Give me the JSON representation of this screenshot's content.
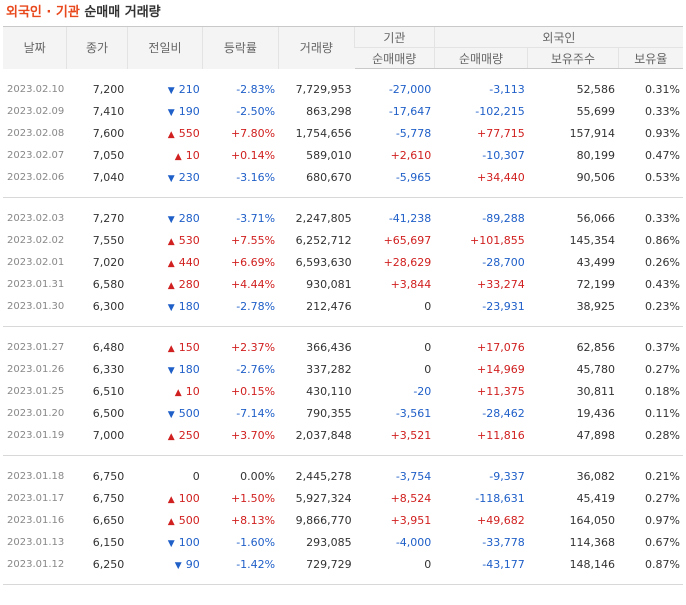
{
  "title": {
    "part1": "외국인 · 기관",
    "part2": "순매매 거래량"
  },
  "headers": {
    "date": "날짜",
    "close": "종가",
    "change": "전일비",
    "rate": "등락률",
    "volume": "거래량",
    "inst_group": "기관",
    "foreign_group": "외국인",
    "inst_net": "순매매량",
    "foreign_net": "순매매량",
    "foreign_hold": "보유주수",
    "foreign_ratio": "보유율"
  },
  "groups": [
    [
      {
        "date": "2023.02.10",
        "close": "7,200",
        "dir": "down",
        "change": "210",
        "rate": "-2.83%",
        "volume": "7,729,953",
        "inst": "-27,000",
        "foreign": "-3,113",
        "hold": "52,586",
        "ratio": "0.31%"
      },
      {
        "date": "2023.02.09",
        "close": "7,410",
        "dir": "down",
        "change": "190",
        "rate": "-2.50%",
        "volume": "863,298",
        "inst": "-17,647",
        "foreign": "-102,215",
        "hold": "55,699",
        "ratio": "0.33%"
      },
      {
        "date": "2023.02.08",
        "close": "7,600",
        "dir": "up",
        "change": "550",
        "rate": "+7.80%",
        "volume": "1,754,656",
        "inst": "-5,778",
        "foreign": "+77,715",
        "hold": "157,914",
        "ratio": "0.93%"
      },
      {
        "date": "2023.02.07",
        "close": "7,050",
        "dir": "up",
        "change": "10",
        "rate": "+0.14%",
        "volume": "589,010",
        "inst": "+2,610",
        "foreign": "-10,307",
        "hold": "80,199",
        "ratio": "0.47%"
      },
      {
        "date": "2023.02.06",
        "close": "7,040",
        "dir": "down",
        "change": "230",
        "rate": "-3.16%",
        "volume": "680,670",
        "inst": "-5,965",
        "foreign": "+34,440",
        "hold": "90,506",
        "ratio": "0.53%"
      }
    ],
    [
      {
        "date": "2023.02.03",
        "close": "7,270",
        "dir": "down",
        "change": "280",
        "rate": "-3.71%",
        "volume": "2,247,805",
        "inst": "-41,238",
        "foreign": "-89,288",
        "hold": "56,066",
        "ratio": "0.33%"
      },
      {
        "date": "2023.02.02",
        "close": "7,550",
        "dir": "up",
        "change": "530",
        "rate": "+7.55%",
        "volume": "6,252,712",
        "inst": "+65,697",
        "foreign": "+101,855",
        "hold": "145,354",
        "ratio": "0.86%"
      },
      {
        "date": "2023.02.01",
        "close": "7,020",
        "dir": "up",
        "change": "440",
        "rate": "+6.69%",
        "volume": "6,593,630",
        "inst": "+28,629",
        "foreign": "-28,700",
        "hold": "43,499",
        "ratio": "0.26%"
      },
      {
        "date": "2023.01.31",
        "close": "6,580",
        "dir": "up",
        "change": "280",
        "rate": "+4.44%",
        "volume": "930,081",
        "inst": "+3,844",
        "foreign": "+33,274",
        "hold": "72,199",
        "ratio": "0.43%"
      },
      {
        "date": "2023.01.30",
        "close": "6,300",
        "dir": "down",
        "change": "180",
        "rate": "-2.78%",
        "volume": "212,476",
        "inst": "0",
        "foreign": "-23,931",
        "hold": "38,925",
        "ratio": "0.23%"
      }
    ],
    [
      {
        "date": "2023.01.27",
        "close": "6,480",
        "dir": "up",
        "change": "150",
        "rate": "+2.37%",
        "volume": "366,436",
        "inst": "0",
        "foreign": "+17,076",
        "hold": "62,856",
        "ratio": "0.37%"
      },
      {
        "date": "2023.01.26",
        "close": "6,330",
        "dir": "down",
        "change": "180",
        "rate": "-2.76%",
        "volume": "337,282",
        "inst": "0",
        "foreign": "+14,969",
        "hold": "45,780",
        "ratio": "0.27%"
      },
      {
        "date": "2023.01.25",
        "close": "6,510",
        "dir": "up",
        "change": "10",
        "rate": "+0.15%",
        "volume": "430,110",
        "inst": "-20",
        "foreign": "+11,375",
        "hold": "30,811",
        "ratio": "0.18%"
      },
      {
        "date": "2023.01.20",
        "close": "6,500",
        "dir": "down",
        "change": "500",
        "rate": "-7.14%",
        "volume": "790,355",
        "inst": "-3,561",
        "foreign": "-28,462",
        "hold": "19,436",
        "ratio": "0.11%"
      },
      {
        "date": "2023.01.19",
        "close": "7,000",
        "dir": "up",
        "change": "250",
        "rate": "+3.70%",
        "volume": "2,037,848",
        "inst": "+3,521",
        "foreign": "+11,816",
        "hold": "47,898",
        "ratio": "0.28%"
      }
    ],
    [
      {
        "date": "2023.01.18",
        "close": "6,750",
        "dir": "none",
        "change": "0",
        "rate": "0.00%",
        "volume": "2,445,278",
        "inst": "-3,754",
        "foreign": "-9,337",
        "hold": "36,082",
        "ratio": "0.21%"
      },
      {
        "date": "2023.01.17",
        "close": "6,750",
        "dir": "up",
        "change": "100",
        "rate": "+1.50%",
        "volume": "5,927,324",
        "inst": "+8,524",
        "foreign": "-118,631",
        "hold": "45,419",
        "ratio": "0.27%"
      },
      {
        "date": "2023.01.16",
        "close": "6,650",
        "dir": "up",
        "change": "500",
        "rate": "+8.13%",
        "volume": "9,866,770",
        "inst": "+3,951",
        "foreign": "+49,682",
        "hold": "164,050",
        "ratio": "0.97%"
      },
      {
        "date": "2023.01.13",
        "close": "6,150",
        "dir": "down",
        "change": "100",
        "rate": "-1.60%",
        "volume": "293,085",
        "inst": "-4,000",
        "foreign": "-33,778",
        "hold": "114,368",
        "ratio": "0.67%"
      },
      {
        "date": "2023.01.12",
        "close": "6,250",
        "dir": "down",
        "change": "90",
        "rate": "-1.42%",
        "volume": "729,729",
        "inst": "0",
        "foreign": "-43,177",
        "hold": "148,146",
        "ratio": "0.87%"
      }
    ]
  ],
  "colors": {
    "up": "#d0201f",
    "down": "#1f5fc8",
    "title_accent": "#e8481c"
  },
  "icons": {
    "up": "up-triangle-icon",
    "down": "down-triangle-icon"
  }
}
